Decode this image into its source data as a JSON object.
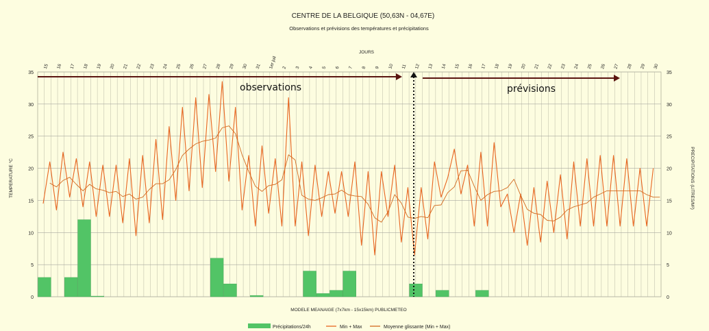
{
  "chart_data": {
    "type": "line",
    "title": "CENTRE DE LA BELGIQUE (50,63N - 04,67E)",
    "subtitle": "Observations et prévisions des températures et précipitations",
    "top_axis_label": "JOURS",
    "bottom_label": "MODELE MEANAIGE (7x7km - 15x15km) PUBLICMETEO",
    "ylabel_left": "TEMPERATURE °C",
    "ylabel_right": "PRECIPITATIONS (LITRES/M²)",
    "ylim": [
      0,
      35
    ],
    "yticks": [
      0,
      5,
      10,
      15,
      20,
      25,
      30,
      35
    ],
    "grid": true,
    "legend_position": "bottom",
    "day_labels": [
      "15",
      "16",
      "17",
      "18",
      "19",
      "20",
      "21",
      "22",
      "23",
      "24",
      "25",
      "26",
      "27",
      "28",
      "29",
      "30",
      "31",
      "1er juil",
      "2",
      "3",
      "4",
      "5",
      "6",
      "7",
      "8",
      "9",
      "10",
      "11",
      "12",
      "13",
      "14",
      "15",
      "16",
      "17",
      "18",
      "19",
      "20",
      "21",
      "22",
      "23",
      "24",
      "25",
      "26",
      "27",
      "28",
      "29",
      "30"
    ],
    "annotations": {
      "observations": "observations",
      "previsions": "prévisions"
    },
    "series": [
      {
        "name": "Min + Max",
        "type": "line",
        "color": "#e8641e",
        "values": [
          14.5,
          21,
          13.5,
          22.5,
          15.5,
          21.5,
          14,
          21,
          12.5,
          20.5,
          12.5,
          20.5,
          11.5,
          21.5,
          9.5,
          22,
          11.5,
          24.5,
          12,
          26.5,
          15,
          29.5,
          16.5,
          31,
          17,
          31.5,
          19.5,
          33.5,
          18,
          29.5,
          13.5,
          22,
          11,
          23.5,
          13,
          21.5,
          11,
          31,
          11,
          21,
          9.5,
          20.5,
          12.5,
          19.5,
          13,
          19.5,
          12.5,
          21,
          8,
          19.5,
          6.5,
          19.5,
          12.5,
          20.5,
          8.5,
          17,
          6.5,
          17,
          9,
          21,
          15.5,
          18.5,
          23,
          16,
          20.5,
          11,
          22.5,
          11,
          24,
          14,
          16,
          10,
          16,
          8,
          17,
          8.5,
          18,
          10,
          19,
          9,
          21,
          11,
          21.5,
          11,
          22,
          11,
          22,
          11,
          21.5,
          11,
          20,
          11,
          20
        ]
      },
      {
        "name": "Moyenne glissante (Min + Max)",
        "type": "line",
        "color": "#d2691e",
        "values": [
          null,
          17.7,
          17.1,
          18.1,
          18.6,
          17.5,
          16.5,
          17.5,
          16.8,
          16.6,
          16.2,
          16.4,
          15.6,
          16,
          15.2,
          15.5,
          16.7,
          17.6,
          17.6,
          18.2,
          19.8,
          22,
          23,
          23.8,
          24.2,
          24.4,
          24.7,
          26.3,
          26.6,
          25.4,
          22.1,
          19.5,
          17.2,
          16.4,
          17.3,
          17.5,
          18.2,
          22.1,
          21.3,
          15.8,
          15.2,
          15,
          15.4,
          15.9,
          16,
          16.6,
          15.9,
          15.7,
          15.6,
          14.4,
          12.3,
          11.6,
          13.2,
          15.9,
          14.6,
          12.4,
          12.2,
          12.5,
          12.3,
          14.2,
          14.3,
          16.2,
          17.1,
          19.6,
          19.7,
          17.2,
          15,
          15.9,
          16.4,
          16.5,
          17,
          18.3,
          15.8,
          13.6,
          13,
          12.8,
          11.9,
          11.8,
          12.4,
          13.5,
          14,
          14.3,
          14.6,
          15.5,
          16,
          16.5,
          16.5,
          16.5,
          16.5,
          16.5,
          16.5,
          15.9,
          15.5,
          15.5,
          null
        ]
      }
    ],
    "precipitation": {
      "name": "Précipitations/24h",
      "type": "bar",
      "color": "#52c466",
      "values": [
        3,
        0,
        3,
        12,
        0.1,
        0,
        0,
        0,
        0,
        0,
        0,
        0,
        0,
        6,
        2,
        0,
        0.2,
        0,
        0,
        0,
        4,
        0.5,
        1,
        4,
        0,
        0,
        0,
        0,
        2,
        0,
        1,
        0,
        0,
        1,
        0,
        0,
        0,
        0,
        0,
        0,
        0,
        0,
        0,
        0,
        0,
        0,
        0
      ]
    },
    "legend": [
      {
        "label": "Précipitations/24h",
        "kind": "bar",
        "color": "#52c466"
      },
      {
        "label": "Min + Max",
        "kind": "line",
        "color": "#e8641e"
      },
      {
        "label": "Moyenne glissante (Min + Max)",
        "kind": "line",
        "color": "#d2691e"
      }
    ]
  }
}
